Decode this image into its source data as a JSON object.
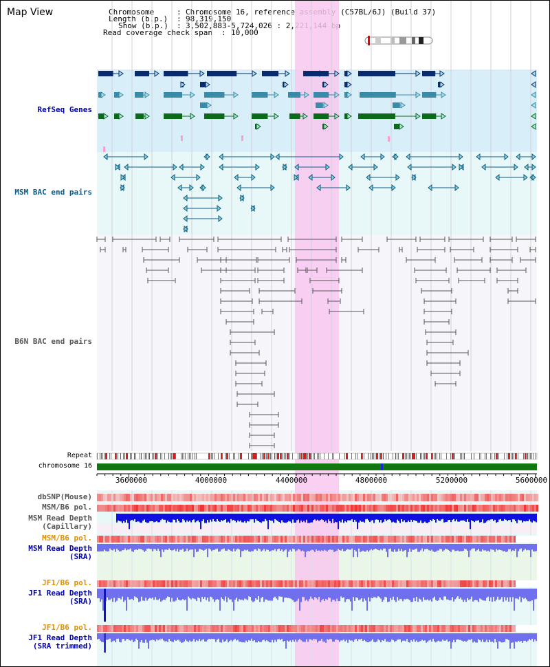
{
  "app_title": "Map View",
  "info": {
    "chromosome_label": "Chromosome",
    "chromosome_value": "Chromosome 16, reference assembly (C57BL/6J) (Build 37)",
    "length_label": "Length (b.p.)",
    "length_value": "98,319,150",
    "show_label": "Show (b.p.)",
    "show_value": "3,502,883-5,724,026 : 2,221,144 bp",
    "coverage_label": "Read coverage check span",
    "coverage_value": "10,000"
  },
  "tracks": {
    "refseq": "RefSeq Genes",
    "msm_bac": "MSM BAC end pairs",
    "b6n_bac": "B6N BAC end pairs",
    "repeat": "Repeat",
    "chromosome": "chromosome 16",
    "dbsnp": "dbSNP(Mouse)",
    "msm_b6_pol_1": "MSM/B6 pol.",
    "msm_read_depth_cap_1": "MSM Read Depth",
    "msm_read_depth_cap_2": "(Capillary)",
    "msm_b6_pol_2": "MSM/B6 pol.",
    "msm_read_depth_sra_1": "MSM Read Depth",
    "msm_read_depth_sra_2": "(SRA)",
    "jf1_b6_pol_1": "JF1/B6 pol.",
    "jf1_read_depth_sra_1": "JF1 Read Depth",
    "jf1_read_depth_sra_2": "(SRA)",
    "jf1_b6_pol_2": "JF1/B6 pol.",
    "jf1_read_depth_trim_1": "JF1 Read Depth",
    "jf1_read_depth_trim_2": "(SRA trimmed)"
  },
  "axis": {
    "ticks": [
      "3600000",
      "4000000",
      "4400000",
      "4800000",
      "5200000",
      "5600000"
    ]
  },
  "colors": {
    "refseq_dark": "#0a2a6e",
    "refseq_mid": "#3a8aaa",
    "refseq_green": "#0a6a1a",
    "msm_bac": "#0a5a8a",
    "b6n_bac": "#555555",
    "highlight": "#f8c8f0",
    "read_depth_blue": "#1010e0",
    "sra_blue": "#7070ee",
    "pol_red": "#e04040",
    "label_blue": "#0000aa",
    "label_orange": "#e09000",
    "chromosome_green": "#117711"
  }
}
